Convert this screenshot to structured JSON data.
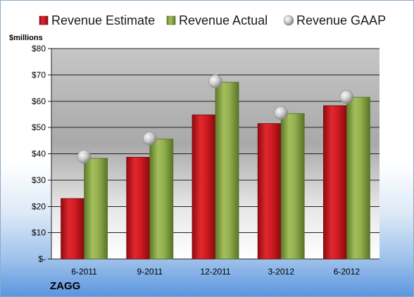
{
  "chart_data": {
    "type": "bar",
    "categories": [
      "6-2011",
      "9-2011",
      "12-2011",
      "3-2012",
      "6-2012"
    ],
    "series": [
      {
        "name": "Revenue Estimate",
        "type": "bar",
        "color": "#c8171d",
        "values": [
          23,
          38.7,
          54.8,
          51.5,
          58.3
        ]
      },
      {
        "name": "Revenue Actual",
        "type": "bar",
        "color": "#8aa64a",
        "values": [
          38.3,
          45.6,
          67.2,
          55.3,
          61.5
        ]
      },
      {
        "name": "Revenue GAAP",
        "type": "scatter",
        "color": "#c0c0c0",
        "values": [
          38.9,
          45.8,
          67.5,
          55.5,
          61.6
        ]
      }
    ],
    "unit_label": "$millions",
    "ylim": [
      0,
      80
    ],
    "yticks": [
      0,
      10,
      20,
      30,
      40,
      50,
      60,
      70,
      80
    ],
    "ytick_labels": [
      "$-",
      "$10",
      "$20",
      "$30",
      "$40",
      "$50",
      "$60",
      "$70",
      "$80"
    ],
    "grid": true,
    "legend_position": "top"
  },
  "company": "ZAGG"
}
